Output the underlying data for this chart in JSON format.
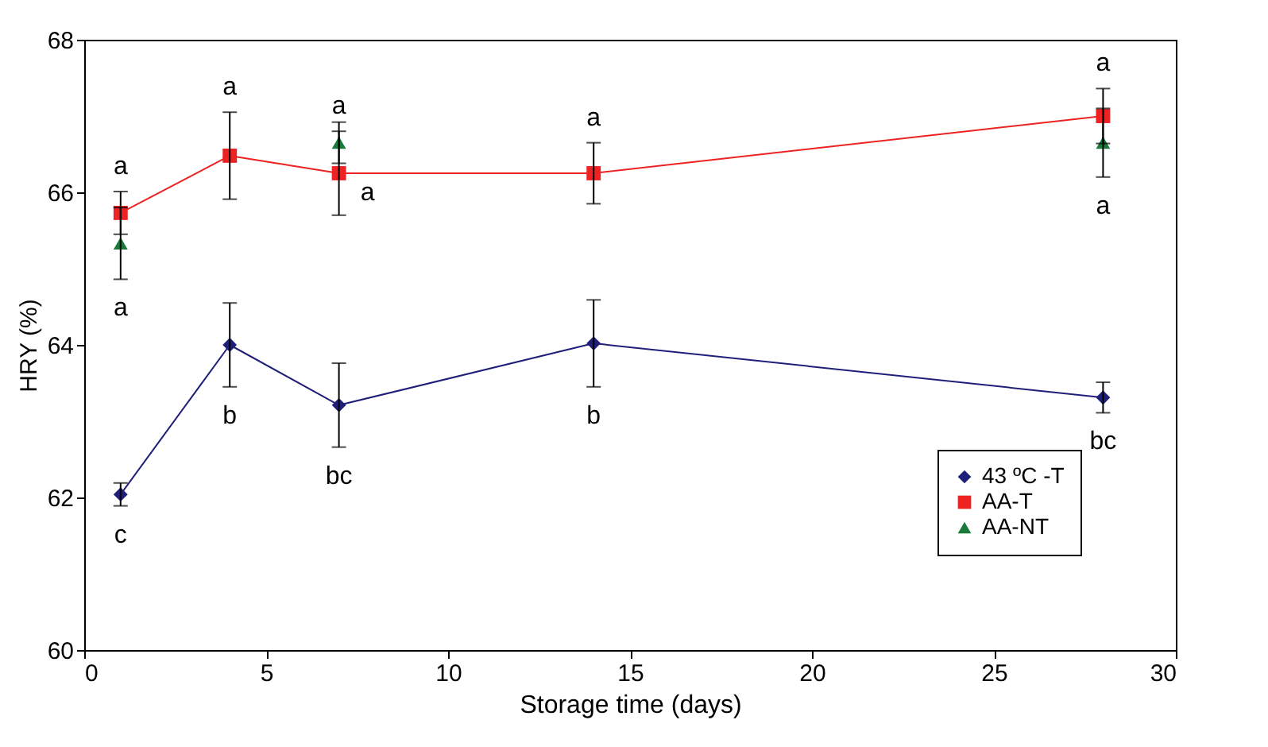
{
  "chart_data": {
    "type": "line",
    "xlabel": "Storage time (days)",
    "ylabel": "HRY (%)",
    "xlim": [
      0,
      30
    ],
    "xticks": [
      0,
      5,
      10,
      15,
      20,
      25,
      30
    ],
    "ylim": [
      60,
      68
    ],
    "yticks": [
      60,
      62,
      64,
      66,
      68
    ],
    "grid": false,
    "legend": "bottom right",
    "line_style": "solid",
    "series": [
      {
        "name": "43 ºC -T",
        "marker": "diamond",
        "color": "#1f1f7a",
        "x": [
          1,
          4,
          7,
          14,
          28
        ],
        "values": [
          62.04,
          64.0,
          63.21,
          64.02,
          63.31
        ],
        "errors": [
          0.15,
          0.55,
          0.55,
          0.57,
          0.2
        ],
        "value_labels": [
          "c",
          "b",
          "bc",
          "b",
          "bc"
        ]
      },
      {
        "name": "AA-T",
        "marker": "square",
        "color": "#ee2222",
        "x": [
          1,
          4,
          7,
          14,
          28
        ],
        "values": [
          65.73,
          66.48,
          66.25,
          66.25,
          67.0
        ],
        "errors": [
          0.28,
          0.57,
          0.55,
          0.4,
          0.36
        ],
        "value_labels": [
          "a",
          "a",
          "a",
          "a",
          "a"
        ]
      },
      {
        "name": "AA-NT",
        "type": "scatter",
        "marker": "triangle",
        "color": "#1a7a3a",
        "x": [
          1,
          7,
          28
        ],
        "values": [
          65.33,
          66.65,
          66.65
        ],
        "errors": [
          0.47,
          0.27,
          0.45
        ],
        "value_labels": [
          "a",
          "a",
          "a"
        ]
      }
    ]
  }
}
